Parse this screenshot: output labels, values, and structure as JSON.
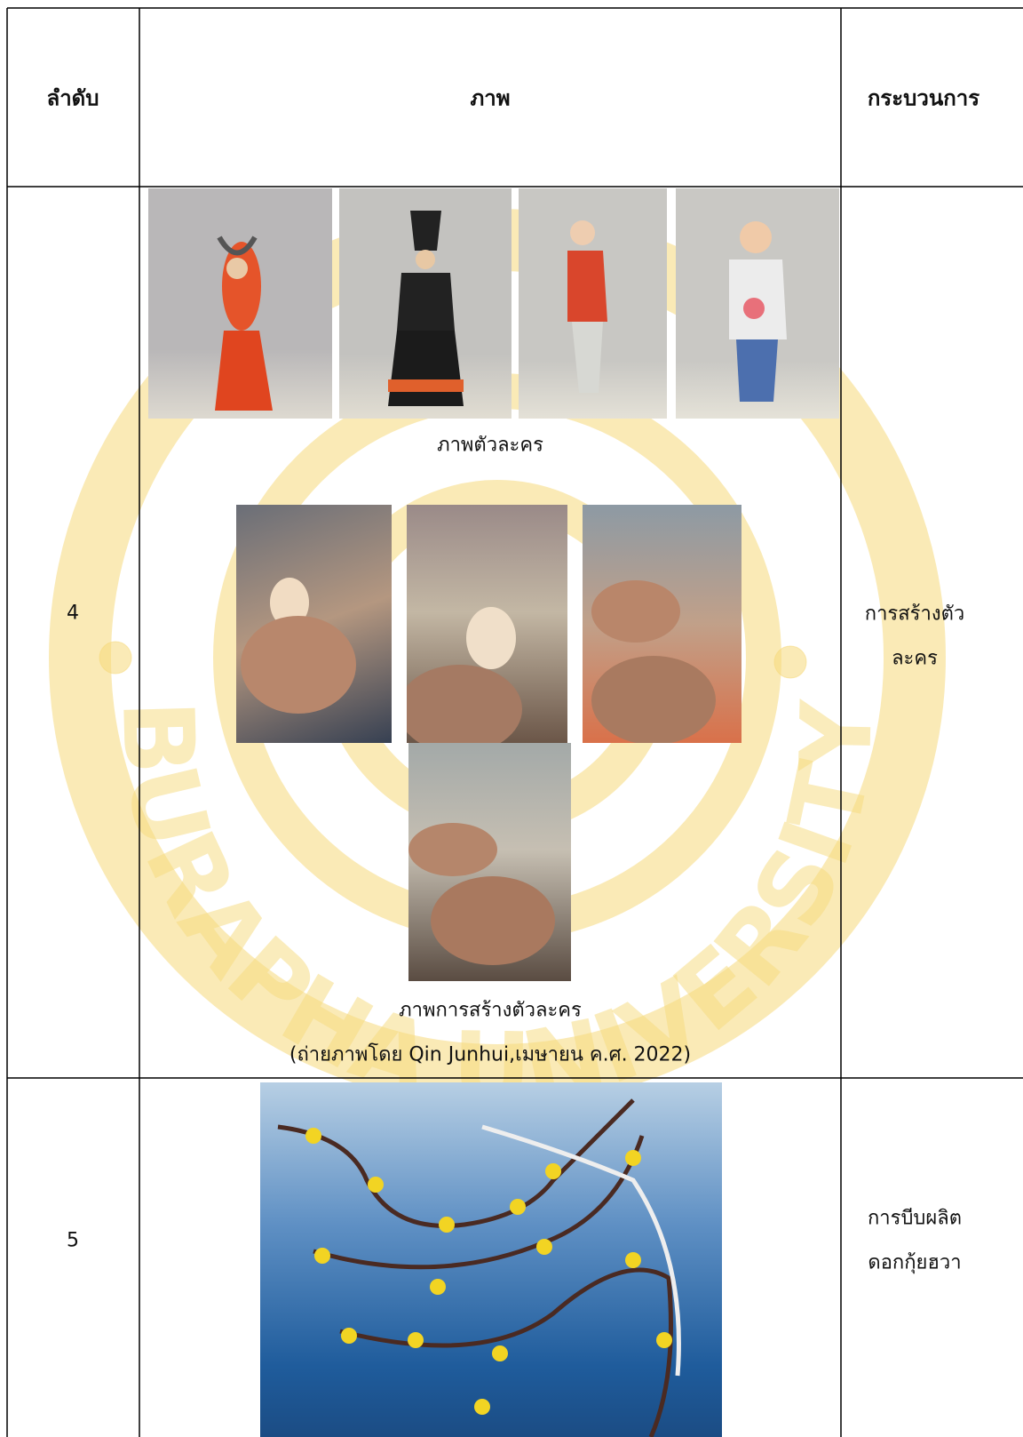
{
  "table": {
    "header": [
      "ลำดับ",
      "ภาพ",
      "กระบวนการ"
    ],
    "rows": [
      {
        "order": "4",
        "captions": [
          "ภาพตัวละคร",
          "ภาพการสร้างตัวละคร",
          "(ถ่ายภาพโดย Qin Junhui,เมษายน ค.ศ. 2022)"
        ],
        "process": [
          "การสร้างตัว",
          "ละคร"
        ]
      },
      {
        "order": "5",
        "process": [
          "การบีบผลิต",
          "ดอกกุ้ยฮวา"
        ]
      }
    ]
  },
  "watermark": "BURAPHA UNIVERSITY"
}
